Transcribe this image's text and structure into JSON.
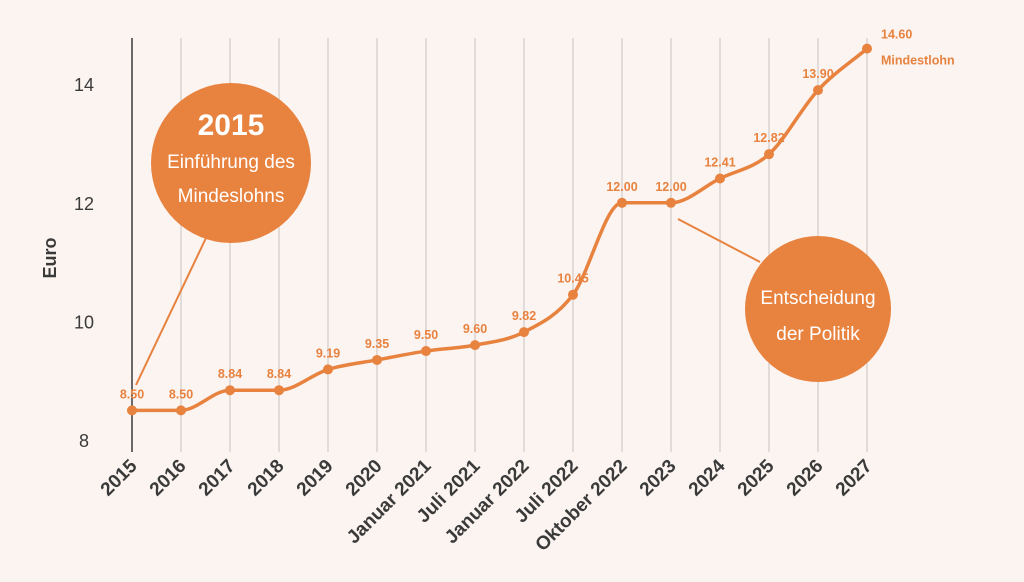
{
  "colors": {
    "background": "#fbf4f1",
    "accent": "#e8823f",
    "grid": "#e2dbd8",
    "axis": "#3a3a3a"
  },
  "chart_data": {
    "type": "line",
    "title": "",
    "xlabel": "",
    "ylabel": "Euro",
    "ylim": [
      8,
      15
    ],
    "yticks": [
      8,
      10,
      12,
      14
    ],
    "grid": true,
    "categories": [
      "2015",
      "2016",
      "2017",
      "2018",
      "2019",
      "2020",
      "Januar 2021",
      "Juli 2021",
      "Januar 2022",
      "Juli 2022",
      "Oktober 2022",
      "2023",
      "2024",
      "2025",
      "2026",
      "2027"
    ],
    "series": [
      {
        "name": "Mindestlohn",
        "values": [
          8.5,
          8.5,
          8.84,
          8.84,
          9.19,
          9.35,
          9.5,
          9.6,
          9.82,
          10.45,
          12.0,
          12.0,
          12.41,
          12.82,
          13.9,
          14.6
        ],
        "labels": [
          "8.50",
          "8.50",
          "8.84",
          "8.84",
          "9.19",
          "9.35",
          "9.50",
          "9.60",
          "9.82",
          "10.45",
          "12.00",
          "12.00",
          "12.41",
          "12.82",
          "13.90",
          "14.60"
        ]
      }
    ],
    "end_label": "Mindestlohn",
    "annotations": [
      {
        "title": "2015",
        "lines": [
          "Einführung des",
          "Mindeslohns"
        ],
        "points_to": "2015"
      },
      {
        "title": "",
        "lines": [
          "Entscheidung",
          "der Politik"
        ],
        "points_to": "2023"
      }
    ]
  }
}
